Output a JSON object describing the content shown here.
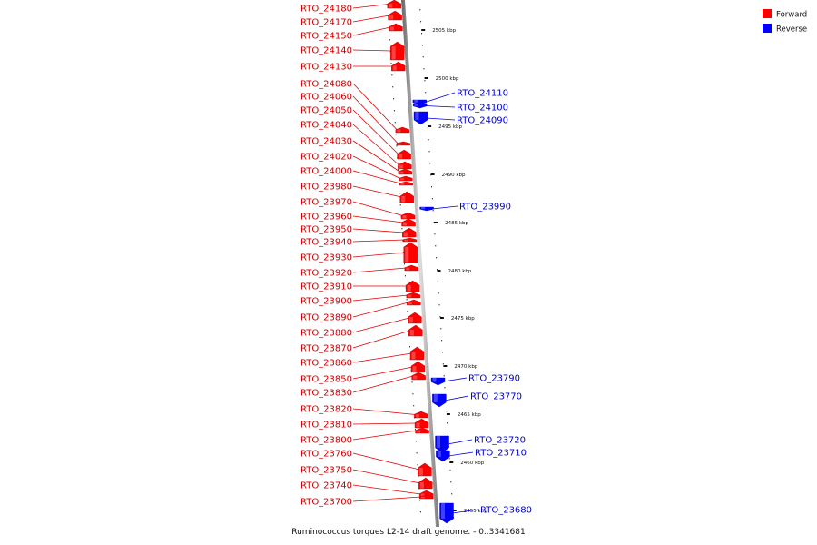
{
  "legend": {
    "items": [
      {
        "label": "Forward",
        "color": "#ff0000"
      },
      {
        "label": "Reverse",
        "color": "#0000ff"
      }
    ]
  },
  "caption": "Ruminococcus torques L2-14 draft genome. - 0..3341681",
  "colors": {
    "forward": "#ff0000",
    "reverse": "#0000ff",
    "forward_label": "#cc0000",
    "reverse_label": "#0000cc",
    "backbone": "#999999"
  },
  "ticks": [
    "2505 kbp",
    "2500 kbp",
    "2495 kbp",
    "2490 kbp",
    "2485 kbp",
    "2480 kbp",
    "2475 kbp",
    "2470 kbp",
    "2465 kbp",
    "2460 kbp",
    "2455 kbp"
  ],
  "forward_genes": [
    "RTO_24180",
    "RTO_24170",
    "RTO_24150",
    "RTO_24140",
    "RTO_24130",
    "RTO_24080",
    "RTO_24060",
    "RTO_24050",
    "RTO_24040",
    "RTO_24030",
    "RTO_24020",
    "RTO_24000",
    "RTO_23980",
    "RTO_23970",
    "RTO_23960",
    "RTO_23950",
    "RTO_23940",
    "RTO_23930",
    "RTO_23920",
    "RTO_23910",
    "RTO_23900",
    "RTO_23890",
    "RTO_23880",
    "RTO_23870",
    "RTO_23860",
    "RTO_23850",
    "RTO_23830",
    "RTO_23820",
    "RTO_23810",
    "RTO_23800",
    "RTO_23760",
    "RTO_23750",
    "RTO_23740",
    "RTO_23700"
  ],
  "reverse_genes": [
    "RTO_24110",
    "RTO_24100",
    "RTO_24090",
    "RTO_23990",
    "RTO_23790",
    "RTO_23770",
    "RTO_23720",
    "RTO_23710",
    "RTO_23680"
  ]
}
